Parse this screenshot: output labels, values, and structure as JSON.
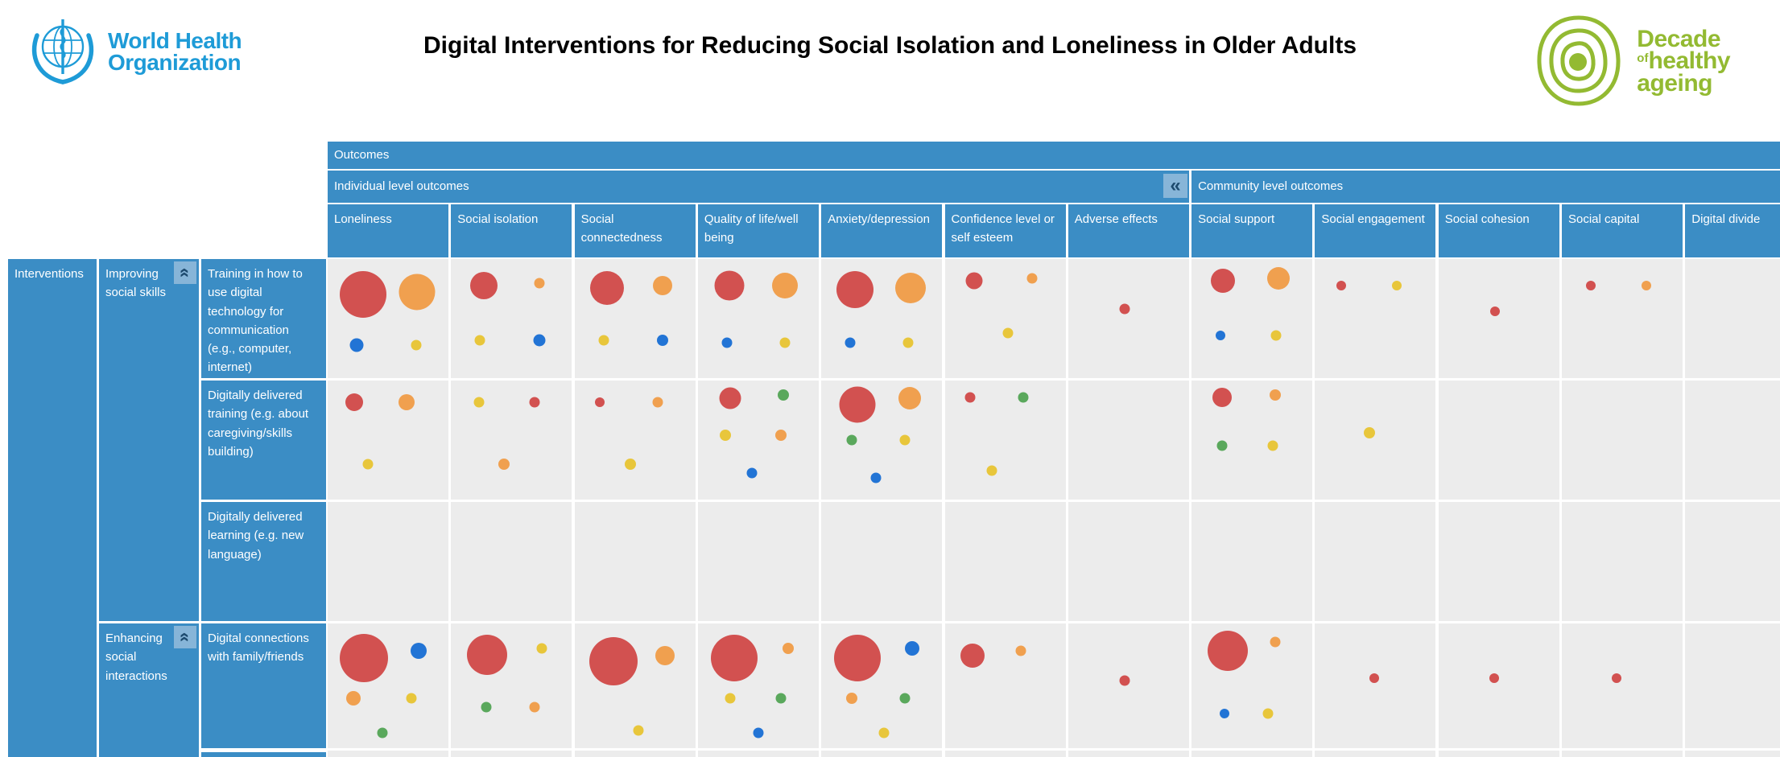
{
  "colors": {
    "header_blue": "#3b8dc5",
    "cell_bg": "#ececec",
    "collapse_btn_bg": "#87b5d8",
    "collapse_icon": "#1d4a6e",
    "who_blue": "#1e9bd7",
    "decade_green": "#93ba32",
    "bubble": {
      "red": "#d25150",
      "orange": "#f0a04f",
      "yellow": "#e8c63b",
      "blue": "#2274d5",
      "green": "#5aa85c"
    }
  },
  "header": {
    "who": {
      "line1": "World Health",
      "line2": "Organization"
    },
    "title": "Digital Interventions for Reducing Social Isolation and Loneliness in Older Adults",
    "decade": {
      "word1": "Decade",
      "of": "of",
      "word2": "healthy",
      "word3": "ageing"
    }
  },
  "matrix": {
    "outcomes_label": "Outcomes",
    "interventions_label": "Interventions",
    "collapse_glyph": "«",
    "column_groups": [
      {
        "label": "Individual level outcomes",
        "cols": 7,
        "has_collapse": true
      },
      {
        "label": "Community level outcomes",
        "cols": 5,
        "has_collapse": false
      }
    ],
    "row_groups": [
      {
        "label": "Improving social skills",
        "rows": [
          0,
          1,
          2
        ],
        "has_collapse": true
      },
      {
        "label": "Enhancing social interactions",
        "rows": [
          3
        ],
        "has_collapse": true
      }
    ]
  },
  "chart_data": {
    "type": "bubble-matrix",
    "title": "Digital Interventions for Reducing Social Isolation and Loneliness in Older Adults",
    "columns": [
      "Loneliness",
      "Social isolation",
      "Social connectedness",
      "Quality of life/well being",
      "Anxiety/depression",
      "Confidence level or self esteem",
      "Adverse effects",
      "Social support",
      "Social engagement",
      "Social cohesion",
      "Social capital",
      "Digital divide"
    ],
    "column_groups": {
      "individual": [
        0,
        6
      ],
      "community": [
        7,
        11
      ]
    },
    "rows": [
      "Training in how to use digital technology for communication (e.g., computer, internet)",
      "Digitally delivered training (e.g. about caregiving/skills building)",
      "Digitally delivered learning (e.g. new language)",
      "Digital connections with family/friends"
    ],
    "bubble_note": "bubble diameter d in px as rendered; x,y are percent positions inside the cell",
    "cells": [
      {
        "row": 0,
        "col": 0,
        "bubbles": [
          {
            "color": "red",
            "d": 58,
            "x": 29,
            "y": 30
          },
          {
            "color": "orange",
            "d": 45,
            "x": 74,
            "y": 28
          },
          {
            "color": "blue",
            "d": 17,
            "x": 24,
            "y": 72
          },
          {
            "color": "yellow",
            "d": 13,
            "x": 73,
            "y": 72
          }
        ]
      },
      {
        "row": 0,
        "col": 1,
        "bubbles": [
          {
            "color": "red",
            "d": 34,
            "x": 27,
            "y": 22
          },
          {
            "color": "orange",
            "d": 13,
            "x": 73,
            "y": 20
          },
          {
            "color": "yellow",
            "d": 13,
            "x": 24,
            "y": 68
          },
          {
            "color": "blue",
            "d": 15,
            "x": 73,
            "y": 68
          }
        ]
      },
      {
        "row": 0,
        "col": 2,
        "bubbles": [
          {
            "color": "red",
            "d": 42,
            "x": 27,
            "y": 24
          },
          {
            "color": "orange",
            "d": 24,
            "x": 73,
            "y": 22
          },
          {
            "color": "yellow",
            "d": 13,
            "x": 24,
            "y": 68
          },
          {
            "color": "blue",
            "d": 14,
            "x": 73,
            "y": 68
          }
        ]
      },
      {
        "row": 0,
        "col": 3,
        "bubbles": [
          {
            "color": "red",
            "d": 37,
            "x": 26,
            "y": 22
          },
          {
            "color": "orange",
            "d": 32,
            "x": 72,
            "y": 22
          },
          {
            "color": "blue",
            "d": 13,
            "x": 24,
            "y": 70
          },
          {
            "color": "yellow",
            "d": 13,
            "x": 72,
            "y": 70
          }
        ]
      },
      {
        "row": 0,
        "col": 4,
        "bubbles": [
          {
            "color": "red",
            "d": 46,
            "x": 28,
            "y": 26
          },
          {
            "color": "orange",
            "d": 38,
            "x": 74,
            "y": 24
          },
          {
            "color": "blue",
            "d": 13,
            "x": 24,
            "y": 70
          },
          {
            "color": "yellow",
            "d": 13,
            "x": 72,
            "y": 70
          }
        ]
      },
      {
        "row": 0,
        "col": 5,
        "bubbles": [
          {
            "color": "red",
            "d": 21,
            "x": 24,
            "y": 18
          },
          {
            "color": "orange",
            "d": 13,
            "x": 72,
            "y": 16
          },
          {
            "color": "yellow",
            "d": 13,
            "x": 52,
            "y": 62
          }
        ]
      },
      {
        "row": 0,
        "col": 6,
        "bubbles": [
          {
            "color": "red",
            "d": 13,
            "x": 47,
            "y": 42
          }
        ]
      },
      {
        "row": 0,
        "col": 7,
        "bubbles": [
          {
            "color": "red",
            "d": 30,
            "x": 26,
            "y": 18
          },
          {
            "color": "orange",
            "d": 28,
            "x": 72,
            "y": 16
          },
          {
            "color": "blue",
            "d": 12,
            "x": 24,
            "y": 64
          },
          {
            "color": "yellow",
            "d": 13,
            "x": 70,
            "y": 64
          }
        ]
      },
      {
        "row": 0,
        "col": 8,
        "bubbles": [
          {
            "color": "red",
            "d": 12,
            "x": 22,
            "y": 22
          },
          {
            "color": "yellow",
            "d": 12,
            "x": 68,
            "y": 22
          }
        ]
      },
      {
        "row": 0,
        "col": 9,
        "bubbles": [
          {
            "color": "red",
            "d": 12,
            "x": 47,
            "y": 44
          }
        ]
      },
      {
        "row": 0,
        "col": 10,
        "bubbles": [
          {
            "color": "red",
            "d": 12,
            "x": 24,
            "y": 22
          },
          {
            "color": "orange",
            "d": 12,
            "x": 70,
            "y": 22
          }
        ]
      },
      {
        "row": 1,
        "col": 0,
        "bubbles": [
          {
            "color": "red",
            "d": 22,
            "x": 22,
            "y": 18
          },
          {
            "color": "orange",
            "d": 20,
            "x": 65,
            "y": 18
          },
          {
            "color": "yellow",
            "d": 13,
            "x": 33,
            "y": 70
          }
        ]
      },
      {
        "row": 1,
        "col": 1,
        "bubbles": [
          {
            "color": "yellow",
            "d": 13,
            "x": 23,
            "y": 18
          },
          {
            "color": "red",
            "d": 13,
            "x": 69,
            "y": 18
          },
          {
            "color": "orange",
            "d": 14,
            "x": 44,
            "y": 70
          }
        ]
      },
      {
        "row": 1,
        "col": 2,
        "bubbles": [
          {
            "color": "red",
            "d": 12,
            "x": 21,
            "y": 18
          },
          {
            "color": "orange",
            "d": 13,
            "x": 69,
            "y": 18
          },
          {
            "color": "yellow",
            "d": 14,
            "x": 46,
            "y": 70
          }
        ]
      },
      {
        "row": 1,
        "col": 3,
        "bubbles": [
          {
            "color": "red",
            "d": 27,
            "x": 27,
            "y": 15
          },
          {
            "color": "green",
            "d": 14,
            "x": 71,
            "y": 12
          },
          {
            "color": "yellow",
            "d": 14,
            "x": 23,
            "y": 46
          },
          {
            "color": "orange",
            "d": 14,
            "x": 69,
            "y": 46
          },
          {
            "color": "blue",
            "d": 13,
            "x": 45,
            "y": 78
          }
        ]
      },
      {
        "row": 1,
        "col": 4,
        "bubbles": [
          {
            "color": "red",
            "d": 45,
            "x": 30,
            "y": 20
          },
          {
            "color": "orange",
            "d": 28,
            "x": 73,
            "y": 15
          },
          {
            "color": "green",
            "d": 13,
            "x": 25,
            "y": 50
          },
          {
            "color": "yellow",
            "d": 13,
            "x": 69,
            "y": 50
          },
          {
            "color": "blue",
            "d": 13,
            "x": 45,
            "y": 82
          }
        ]
      },
      {
        "row": 1,
        "col": 5,
        "bubbles": [
          {
            "color": "red",
            "d": 13,
            "x": 21,
            "y": 14
          },
          {
            "color": "green",
            "d": 13,
            "x": 65,
            "y": 14
          },
          {
            "color": "yellow",
            "d": 13,
            "x": 39,
            "y": 76
          }
        ]
      },
      {
        "row": 1,
        "col": 7,
        "bubbles": [
          {
            "color": "red",
            "d": 24,
            "x": 25,
            "y": 14
          },
          {
            "color": "orange",
            "d": 14,
            "x": 69,
            "y": 12
          },
          {
            "color": "green",
            "d": 13,
            "x": 25,
            "y": 55
          },
          {
            "color": "yellow",
            "d": 13,
            "x": 67,
            "y": 55
          }
        ]
      },
      {
        "row": 1,
        "col": 8,
        "bubbles": [
          {
            "color": "yellow",
            "d": 14,
            "x": 45,
            "y": 44
          }
        ]
      },
      {
        "row": 3,
        "col": 0,
        "bubbles": [
          {
            "color": "red",
            "d": 60,
            "x": 30,
            "y": 28
          },
          {
            "color": "blue",
            "d": 20,
            "x": 75,
            "y": 22
          },
          {
            "color": "orange",
            "d": 18,
            "x": 21,
            "y": 60
          },
          {
            "color": "yellow",
            "d": 13,
            "x": 69,
            "y": 60
          },
          {
            "color": "green",
            "d": 13,
            "x": 45,
            "y": 88
          }
        ]
      },
      {
        "row": 3,
        "col": 1,
        "bubbles": [
          {
            "color": "red",
            "d": 50,
            "x": 30,
            "y": 25
          },
          {
            "color": "yellow",
            "d": 13,
            "x": 75,
            "y": 20
          },
          {
            "color": "green",
            "d": 13,
            "x": 29,
            "y": 67
          },
          {
            "color": "orange",
            "d": 13,
            "x": 69,
            "y": 67
          }
        ]
      },
      {
        "row": 3,
        "col": 2,
        "bubbles": [
          {
            "color": "red",
            "d": 60,
            "x": 32,
            "y": 30
          },
          {
            "color": "orange",
            "d": 24,
            "x": 75,
            "y": 26
          },
          {
            "color": "yellow",
            "d": 13,
            "x": 53,
            "y": 86
          }
        ]
      },
      {
        "row": 3,
        "col": 3,
        "bubbles": [
          {
            "color": "red",
            "d": 58,
            "x": 30,
            "y": 28
          },
          {
            "color": "orange",
            "d": 14,
            "x": 75,
            "y": 20
          },
          {
            "color": "yellow",
            "d": 13,
            "x": 27,
            "y": 60
          },
          {
            "color": "green",
            "d": 13,
            "x": 69,
            "y": 60
          },
          {
            "color": "blue",
            "d": 13,
            "x": 50,
            "y": 88
          }
        ]
      },
      {
        "row": 3,
        "col": 4,
        "bubbles": [
          {
            "color": "red",
            "d": 58,
            "x": 30,
            "y": 28
          },
          {
            "color": "blue",
            "d": 18,
            "x": 75,
            "y": 20
          },
          {
            "color": "orange",
            "d": 14,
            "x": 25,
            "y": 60
          },
          {
            "color": "green",
            "d": 13,
            "x": 69,
            "y": 60
          },
          {
            "color": "yellow",
            "d": 13,
            "x": 52,
            "y": 88
          }
        ]
      },
      {
        "row": 3,
        "col": 5,
        "bubbles": [
          {
            "color": "red",
            "d": 30,
            "x": 23,
            "y": 26
          },
          {
            "color": "orange",
            "d": 13,
            "x": 63,
            "y": 22
          }
        ]
      },
      {
        "row": 3,
        "col": 6,
        "bubbles": [
          {
            "color": "red",
            "d": 13,
            "x": 47,
            "y": 46
          }
        ]
      },
      {
        "row": 3,
        "col": 7,
        "bubbles": [
          {
            "color": "red",
            "d": 50,
            "x": 30,
            "y": 22
          },
          {
            "color": "orange",
            "d": 13,
            "x": 69,
            "y": 15
          },
          {
            "color": "blue",
            "d": 12,
            "x": 27,
            "y": 72
          },
          {
            "color": "yellow",
            "d": 13,
            "x": 63,
            "y": 72
          }
        ]
      },
      {
        "row": 3,
        "col": 8,
        "bubbles": [
          {
            "color": "red",
            "d": 12,
            "x": 49,
            "y": 44
          }
        ]
      },
      {
        "row": 3,
        "col": 9,
        "bubbles": [
          {
            "color": "red",
            "d": 12,
            "x": 46,
            "y": 44
          }
        ]
      },
      {
        "row": 3,
        "col": 10,
        "bubbles": [
          {
            "color": "red",
            "d": 12,
            "x": 45,
            "y": 44
          }
        ]
      }
    ]
  }
}
